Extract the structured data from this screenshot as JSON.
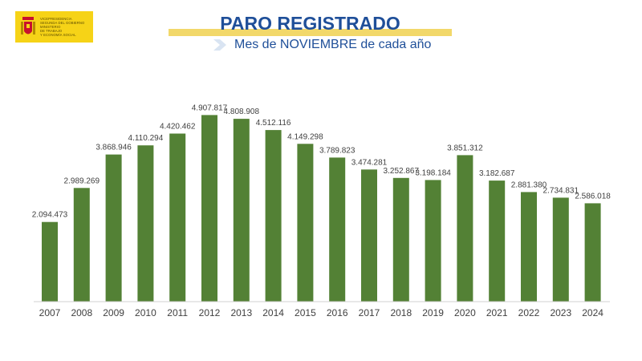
{
  "logo": {
    "lines": [
      "VICEPRESIDENCIA",
      "SEGUNDA DEL GOBIERNO",
      "MINISTERIO",
      "DE TRABAJO",
      "Y ECONOMÍA SOCIAL"
    ],
    "colors": {
      "background": "#f6d317",
      "shield": "#c8102e"
    }
  },
  "header": {
    "title": "PARO REGISTRADO",
    "subtitle": "Mes de NOVIEMBRE de cada año",
    "colors": {
      "title": "#1f4f99",
      "title_bar": "#f2d86a",
      "arrow": "#d9e4f2"
    }
  },
  "chart_data": {
    "type": "bar",
    "title": "PARO REGISTRADO",
    "subtitle": "Mes de NOVIEMBRE de cada año",
    "xlabel": "",
    "ylabel": "",
    "ylim": [
      0,
      5000000
    ],
    "grid": false,
    "legend": "none",
    "bar_color": "#538135",
    "categories": [
      "2007",
      "2008",
      "2009",
      "2010",
      "2011",
      "2012",
      "2013",
      "2014",
      "2015",
      "2016",
      "2017",
      "2018",
      "2019",
      "2020",
      "2021",
      "2022",
      "2023",
      "2024"
    ],
    "values": [
      2094473,
      2989269,
      3868946,
      4110294,
      4420462,
      4907817,
      4808908,
      4512116,
      4149298,
      3789823,
      3474281,
      3252867,
      3198184,
      3851312,
      3182687,
      2881380,
      2734831,
      2586018
    ],
    "value_labels": [
      "2.094.473",
      "2.989.269",
      "3.868.946",
      "4.110.294",
      "4.420.462",
      "4.907.817",
      "4.808.908",
      "4.512.116",
      "4.149.298",
      "3.789.823",
      "3.474.281",
      "3.252.867",
      "3.198.184",
      "3.851.312",
      "3.182.687",
      "2.881.380",
      "2.734.831",
      "2.586.018"
    ]
  }
}
